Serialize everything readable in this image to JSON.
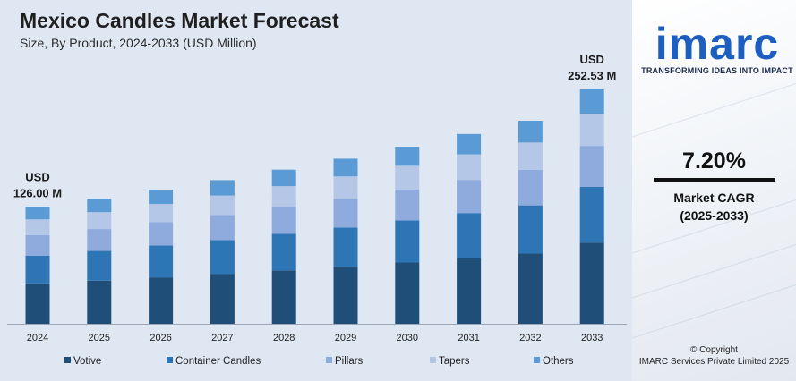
{
  "chart_data": {
    "type": "bar",
    "stacked": true,
    "title": "Mexico Candles Market Forecast",
    "subtitle": "Size, By Product, 2024-2033 (USD Million)",
    "categories": [
      "2024",
      "2025",
      "2026",
      "2027",
      "2028",
      "2029",
      "2030",
      "2031",
      "2032",
      "2033"
    ],
    "series": [
      {
        "name": "Votive",
        "color": "#1f4e79",
        "values": [
          43.5,
          46.5,
          50.0,
          53.5,
          57.5,
          61.5,
          66.0,
          70.8,
          75.7,
          87.5
        ]
      },
      {
        "name": "Container Candles",
        "color": "#2e75b6",
        "values": [
          30.0,
          32.0,
          34.3,
          36.7,
          39.4,
          42.2,
          45.3,
          48.5,
          51.9,
          60.0
        ]
      },
      {
        "name": "Pillars",
        "color": "#8faadc",
        "values": [
          22.0,
          23.6,
          25.3,
          27.1,
          29.0,
          31.1,
          33.3,
          35.7,
          38.2,
          44.2
        ]
      },
      {
        "name": "Tapers",
        "color": "#b4c7e7",
        "values": [
          17.0,
          18.2,
          19.5,
          20.9,
          22.4,
          24.0,
          25.7,
          27.6,
          29.5,
          34.2
        ]
      },
      {
        "name": "Others",
        "color": "#5b9bd5",
        "values": [
          13.5,
          14.5,
          15.5,
          16.6,
          17.8,
          19.1,
          20.5,
          21.9,
          23.5,
          26.63
        ]
      }
    ],
    "annotations": [
      {
        "category": "2024",
        "unit": "USD",
        "value": "126.00 M"
      },
      {
        "category": "2033",
        "unit": "USD",
        "value": "252.53 M"
      }
    ],
    "ylim": [
      0,
      252.53
    ],
    "grid": false,
    "legend": "bottom"
  },
  "brand": {
    "logo_text": "imarc",
    "tagline": "TRANSFORMING IDEAS INTO IMPACT",
    "color": "#1d5fc1"
  },
  "cagr": {
    "value": "7.20%",
    "label_line1": "Market CAGR",
    "label_line2": "(2025-2033)"
  },
  "footer": {
    "line1": "© Copyright",
    "line2": "IMARC Services Private Limited 2025"
  }
}
